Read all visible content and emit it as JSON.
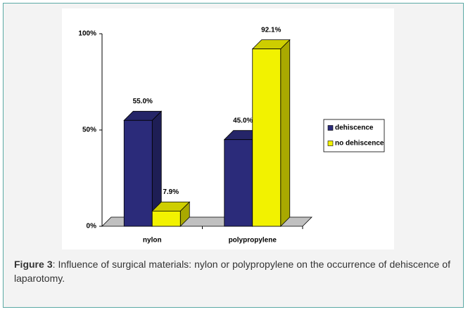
{
  "chart_data": {
    "type": "bar",
    "categories": [
      "nylon",
      "polypropylene"
    ],
    "series": [
      {
        "name": "dehiscence",
        "color": "#2b2b7a",
        "values": [
          55.0,
          45.0
        ],
        "value_labels": [
          "55.0%",
          "45.0%"
        ]
      },
      {
        "name": "no dehiscence",
        "color": "#f2f200",
        "values": [
          7.9,
          92.1
        ],
        "value_labels": [
          "7.9%",
          "92.1%"
        ]
      }
    ],
    "ylim": [
      0,
      100
    ],
    "yticks": [
      {
        "value": 0,
        "label": "0%"
      },
      {
        "value": 50,
        "label": "50%"
      },
      {
        "value": 100,
        "label": "100%"
      }
    ],
    "legend": "right"
  },
  "caption": {
    "label": "Figure 3",
    "text": ": Influence of surgical materials: nylon or polypropylene on the occurrence of dehiscence of laparotomy."
  }
}
